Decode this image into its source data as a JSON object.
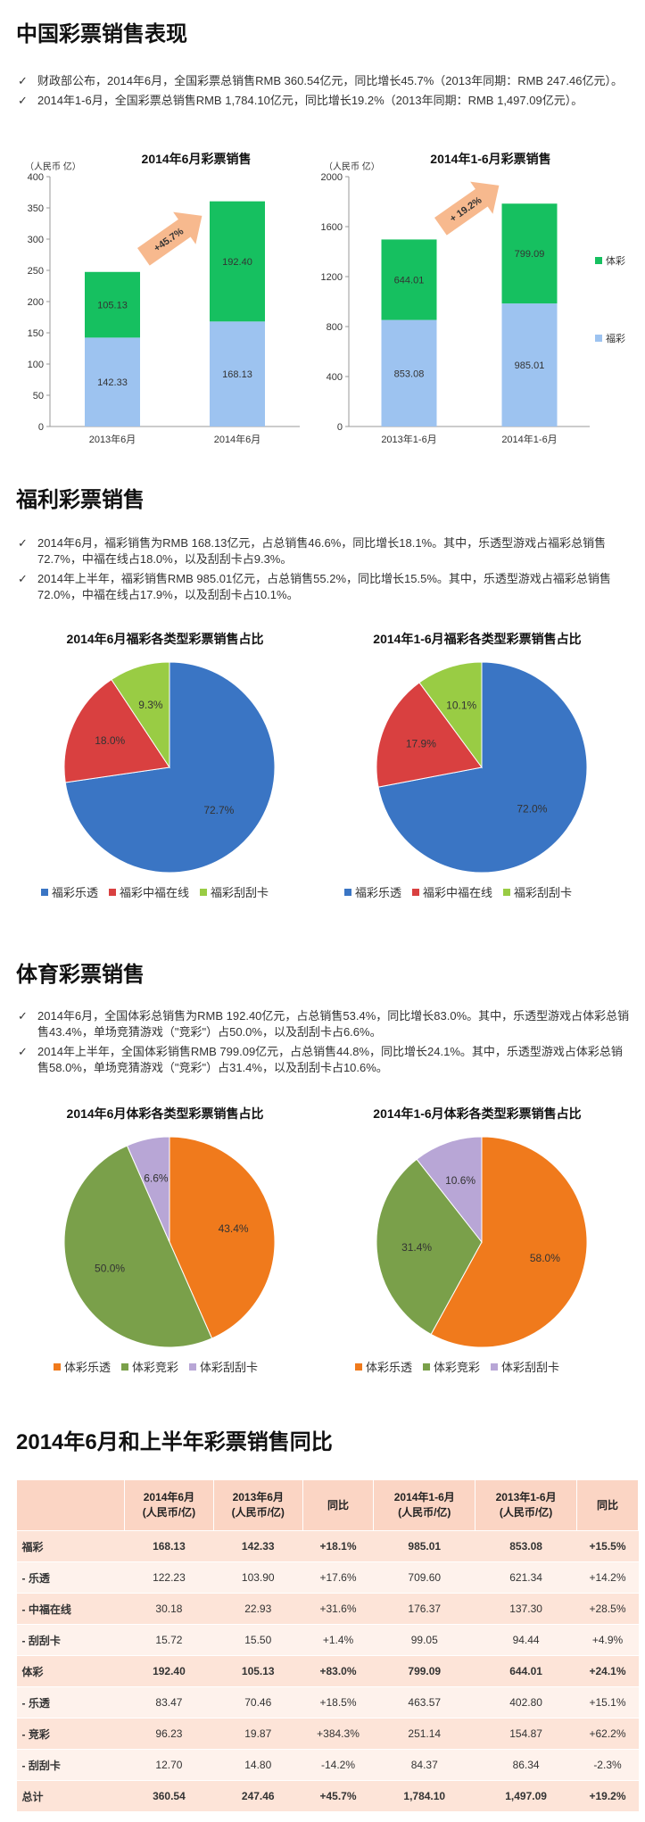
{
  "section1": {
    "title": "中国彩票销售表现",
    "bullets": [
      "财政部公布，2014年6月，全国彩票总销售RMB 360.54亿元，同比增长45.7%（2013年同期：RMB 247.46亿元）。",
      "2014年1-6月，全国彩票总销售RMB 1,784.10亿元，同比增长19.2%（2013年同期：RMB 1,497.09亿元）。"
    ]
  },
  "section2": {
    "title": "福利彩票销售",
    "bullets": [
      "2014年6月，福彩销售为RMB 168.13亿元，占总销售46.6%，同比增长18.1%。其中，乐透型游戏占福彩总销售72.7%，中福在线占18.0%，以及刮刮卡占9.3%。",
      "2014年上半年，福彩销售RMB 985.01亿元，占总销售55.2%，同比增长15.5%。其中，乐透型游戏占福彩总销售72.0%，中福在线占17.9%，以及刮刮卡占10.1%。"
    ]
  },
  "section3": {
    "title": "体育彩票销售",
    "bullets": [
      "2014年6月，全国体彩总销售为RMB 192.40亿元，占总销售53.4%，同比增长83.0%。其中，乐透型游戏占体彩总销售43.4%，单场竞猜游戏（\"竞彩\"）占50.0%，以及刮刮卡占6.6%。",
      "2014年上半年，全国体彩销售RMB 799.09亿元，占总销售44.8%，同比增长24.1%。其中，乐透型游戏占体彩总销售58.0%，单场竞猜游戏（\"竞彩\"）占31.4%，以及刮刮卡占10.6%。"
    ]
  },
  "section4": {
    "title": "2014年6月和上半年彩票销售同比"
  },
  "colors": {
    "fucai_bar": "#9dc3f0",
    "ticai_bar": "#16c060",
    "arrow": "#f7b98e",
    "pie_lotto_fc": "#3a75c4",
    "pie_zfzx": "#d94040",
    "pie_scratch_fc": "#99cc44",
    "pie_lotto_tc": "#f07a1c",
    "pie_jingcai": "#7aa04a",
    "pie_scratch_tc": "#b8a6d6"
  },
  "chart_data": [
    {
      "type": "bar",
      "stacked": true,
      "title": "2014年6月彩票销售",
      "ylabel": "（人民币 亿）",
      "categories": [
        "2013年6月",
        "2014年6月"
      ],
      "series": [
        {
          "name": "福彩",
          "values": [
            142.33,
            168.13
          ]
        },
        {
          "name": "体彩",
          "values": [
            105.13,
            192.4
          ]
        }
      ],
      "ylim": [
        0,
        400
      ],
      "yticks": [
        0,
        50,
        100,
        150,
        200,
        250,
        300,
        350,
        400
      ],
      "annotation": "+45.7%"
    },
    {
      "type": "bar",
      "stacked": true,
      "title": "2014年1-6月彩票销售",
      "ylabel": "（人民币 亿）",
      "categories": [
        "2013年1-6月",
        "2014年1-6月"
      ],
      "series": [
        {
          "name": "福彩",
          "values": [
            853.08,
            985.01
          ]
        },
        {
          "name": "体彩",
          "values": [
            644.01,
            799.09
          ]
        }
      ],
      "ylim": [
        0,
        2000
      ],
      "yticks": [
        0,
        400,
        800,
        1200,
        1600,
        2000
      ],
      "annotation": "+ 19.2%",
      "legend": [
        "体彩",
        "福彩"
      ]
    },
    {
      "type": "pie",
      "title": "2014年6月福彩各类型彩票销售占比",
      "labels": [
        "福彩乐透",
        "福彩中福在线",
        "福彩刮刮卡"
      ],
      "values": [
        72.7,
        18.0,
        9.3
      ],
      "value_labels": [
        "72.7%",
        "18.0%",
        "9.3%"
      ]
    },
    {
      "type": "pie",
      "title": "2014年1-6月福彩各类型彩票销售占比",
      "labels": [
        "福彩乐透",
        "福彩中福在线",
        "福彩刮刮卡"
      ],
      "values": [
        72.0,
        17.9,
        10.1
      ],
      "value_labels": [
        "72.0%",
        "17.9%",
        "10.1%"
      ]
    },
    {
      "type": "pie",
      "title": "2014年6月体彩各类型彩票销售占比",
      "labels": [
        "体彩乐透",
        "体彩竞彩",
        "体彩刮刮卡"
      ],
      "values": [
        43.4,
        50.0,
        6.6
      ],
      "value_labels": [
        "43.4%",
        "50.0%",
        "6.6%"
      ]
    },
    {
      "type": "pie",
      "title": "2014年1-6月体彩各类型彩票销售占比",
      "labels": [
        "体彩乐透",
        "体彩竞彩",
        "体彩刮刮卡"
      ],
      "values": [
        58.0,
        31.4,
        10.6
      ],
      "value_labels": [
        "58.0%",
        "31.4%",
        "10.6%"
      ]
    },
    {
      "type": "table",
      "columns": [
        "",
        "2014年6月\n(人民币/亿)",
        "2013年6月\n(人民币/亿)",
        "同比",
        "2014年1-6月\n(人民币/亿)",
        "2013年1-6月\n(人民币/亿)",
        "同比"
      ],
      "rows": [
        [
          "福彩",
          "168.13",
          "142.33",
          "+18.1%",
          "985.01",
          "853.08",
          "+15.5%"
        ],
        [
          "- 乐透",
          "122.23",
          "103.90",
          "+17.6%",
          "709.60",
          "621.34",
          "+14.2%"
        ],
        [
          "- 中福在线",
          "30.18",
          "22.93",
          "+31.6%",
          "176.37",
          "137.30",
          "+28.5%"
        ],
        [
          "- 刮刮卡",
          "15.72",
          "15.50",
          "+1.4%",
          "99.05",
          "94.44",
          "+4.9%"
        ],
        [
          "体彩",
          "192.40",
          "105.13",
          "+83.0%",
          "799.09",
          "644.01",
          "+24.1%"
        ],
        [
          "- 乐透",
          "83.47",
          "70.46",
          "+18.5%",
          "463.57",
          "402.80",
          "+15.1%"
        ],
        [
          "- 竞彩",
          "96.23",
          "19.87",
          "+384.3%",
          "251.14",
          "154.87",
          "+62.2%"
        ],
        [
          "- 刮刮卡",
          "12.70",
          "14.80",
          "-14.2%",
          "84.37",
          "86.34",
          "-2.3%"
        ],
        [
          "总计",
          "360.54",
          "247.46",
          "+45.7%",
          "1,784.10",
          "1,497.09",
          "+19.2%"
        ]
      ],
      "bold_rows": [
        0,
        4,
        8
      ]
    }
  ]
}
